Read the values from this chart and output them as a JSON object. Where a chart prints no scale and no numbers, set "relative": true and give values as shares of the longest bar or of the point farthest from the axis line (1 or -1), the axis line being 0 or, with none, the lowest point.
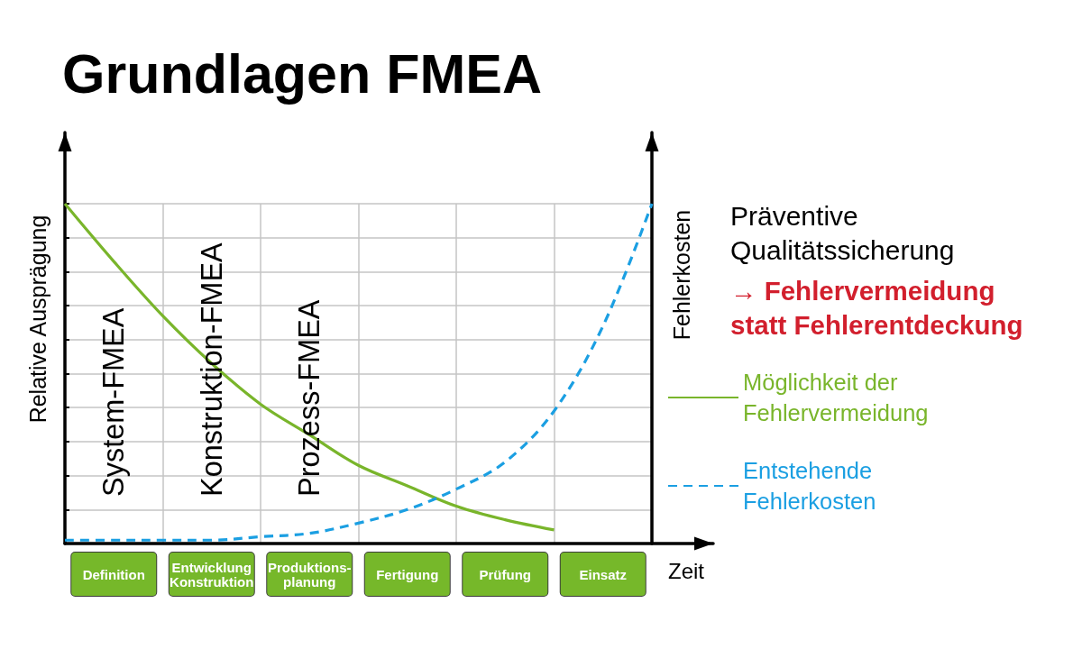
{
  "chart_data": {
    "type": "line",
    "title": "Grundlagen FMEA",
    "xlabel": "Zeit",
    "ylabel": "Relative Ausprägung",
    "y2label": "Fehlerkosten",
    "categories": [
      null,
      "Definition",
      null,
      "Entwicklung Konstruktion",
      null,
      "Produktions-planung",
      null,
      "Fertigung",
      null,
      "Prüfung",
      null,
      "Einsatz",
      null
    ],
    "relative": true,
    "series": [
      {
        "name": "Möglichkeit der Fehlervermeidung",
        "color": "#79b52b",
        "line_style": "solid",
        "values": [
          1,
          0.83,
          0.67,
          0.53,
          0.41,
          0.32,
          0.23,
          0.17,
          0.11,
          0.07,
          0.04,
          null,
          null
        ]
      },
      {
        "name": "Entstehende Fehlerkosten",
        "color": "#1b9fe2",
        "line_style": "dashed",
        "values": [
          0.01,
          0.01,
          0.01,
          0.01,
          0.02,
          0.03,
          0.06,
          0.1,
          0.16,
          0.24,
          0.39,
          0.64,
          1
        ]
      }
    ],
    "annotations": [
      "System-FMEA",
      "Konstruktion-FMEA",
      "Prozess-FMEA",
      "Präventive Qualitätssicherung",
      "→ Fehlervermeidung statt Fehlerentdeckung"
    ],
    "grid": true,
    "legend": "right",
    "marker": "none"
  }
}
